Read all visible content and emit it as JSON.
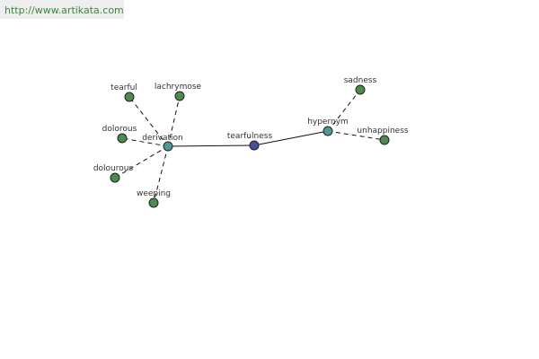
{
  "header": {
    "url": "http://www.artikata.com"
  },
  "nodes": [
    {
      "label": "tearfulness"
    },
    {
      "label": "derivation"
    },
    {
      "label": "hypernym"
    },
    {
      "label": "tearful"
    },
    {
      "label": "lachrymose"
    },
    {
      "label": "dolorous"
    },
    {
      "label": "dolourous"
    },
    {
      "label": "weeping"
    },
    {
      "label": "sadness"
    },
    {
      "label": "unhappiness"
    }
  ]
}
